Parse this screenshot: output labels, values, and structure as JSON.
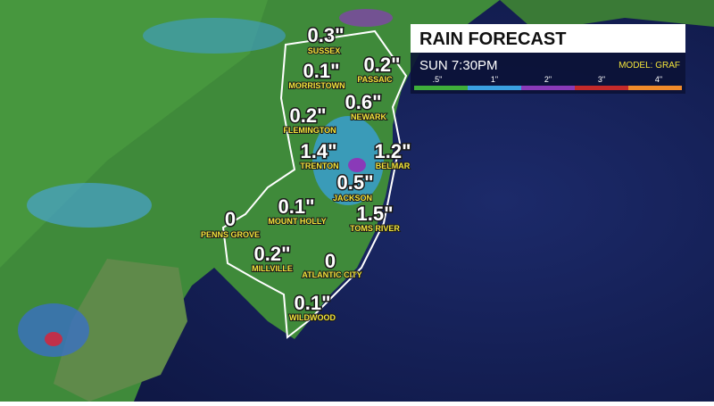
{
  "header": {
    "title": "RAIN FORECAST",
    "time": "SUN 7:30PM",
    "model": "MODEL: GRAF"
  },
  "legend": {
    "labels": [
      ".5\"",
      "1\"",
      "2\"",
      "3\"",
      "4\""
    ]
  },
  "cities": [
    {
      "amount": "0.3\"",
      "name": "SUSSEX"
    },
    {
      "amount": "0.1\"",
      "name": "MORRISTOWN"
    },
    {
      "amount": "0.2\"",
      "name": "PASSAIC"
    },
    {
      "amount": "0.6\"",
      "name": "NEWARK"
    },
    {
      "amount": "0.2\"",
      "name": "FLEMINGTON"
    },
    {
      "amount": "1.4\"",
      "name": "TRENTON"
    },
    {
      "amount": "1.2\"",
      "name": "BELMAR"
    },
    {
      "amount": "0.5\"",
      "name": "JACKSON"
    },
    {
      "amount": "0.1\"",
      "name": "MOUNT HOLLY"
    },
    {
      "amount": "0",
      "name": "PENNS GROVE"
    },
    {
      "amount": "1.5\"",
      "name": "TOMS RIVER"
    },
    {
      "amount": "0.2\"",
      "name": "MILLVILLE"
    },
    {
      "amount": "0",
      "name": "ATLANTIC CITY"
    },
    {
      "amount": "0.1\"",
      "name": "WILDWOOD"
    }
  ]
}
